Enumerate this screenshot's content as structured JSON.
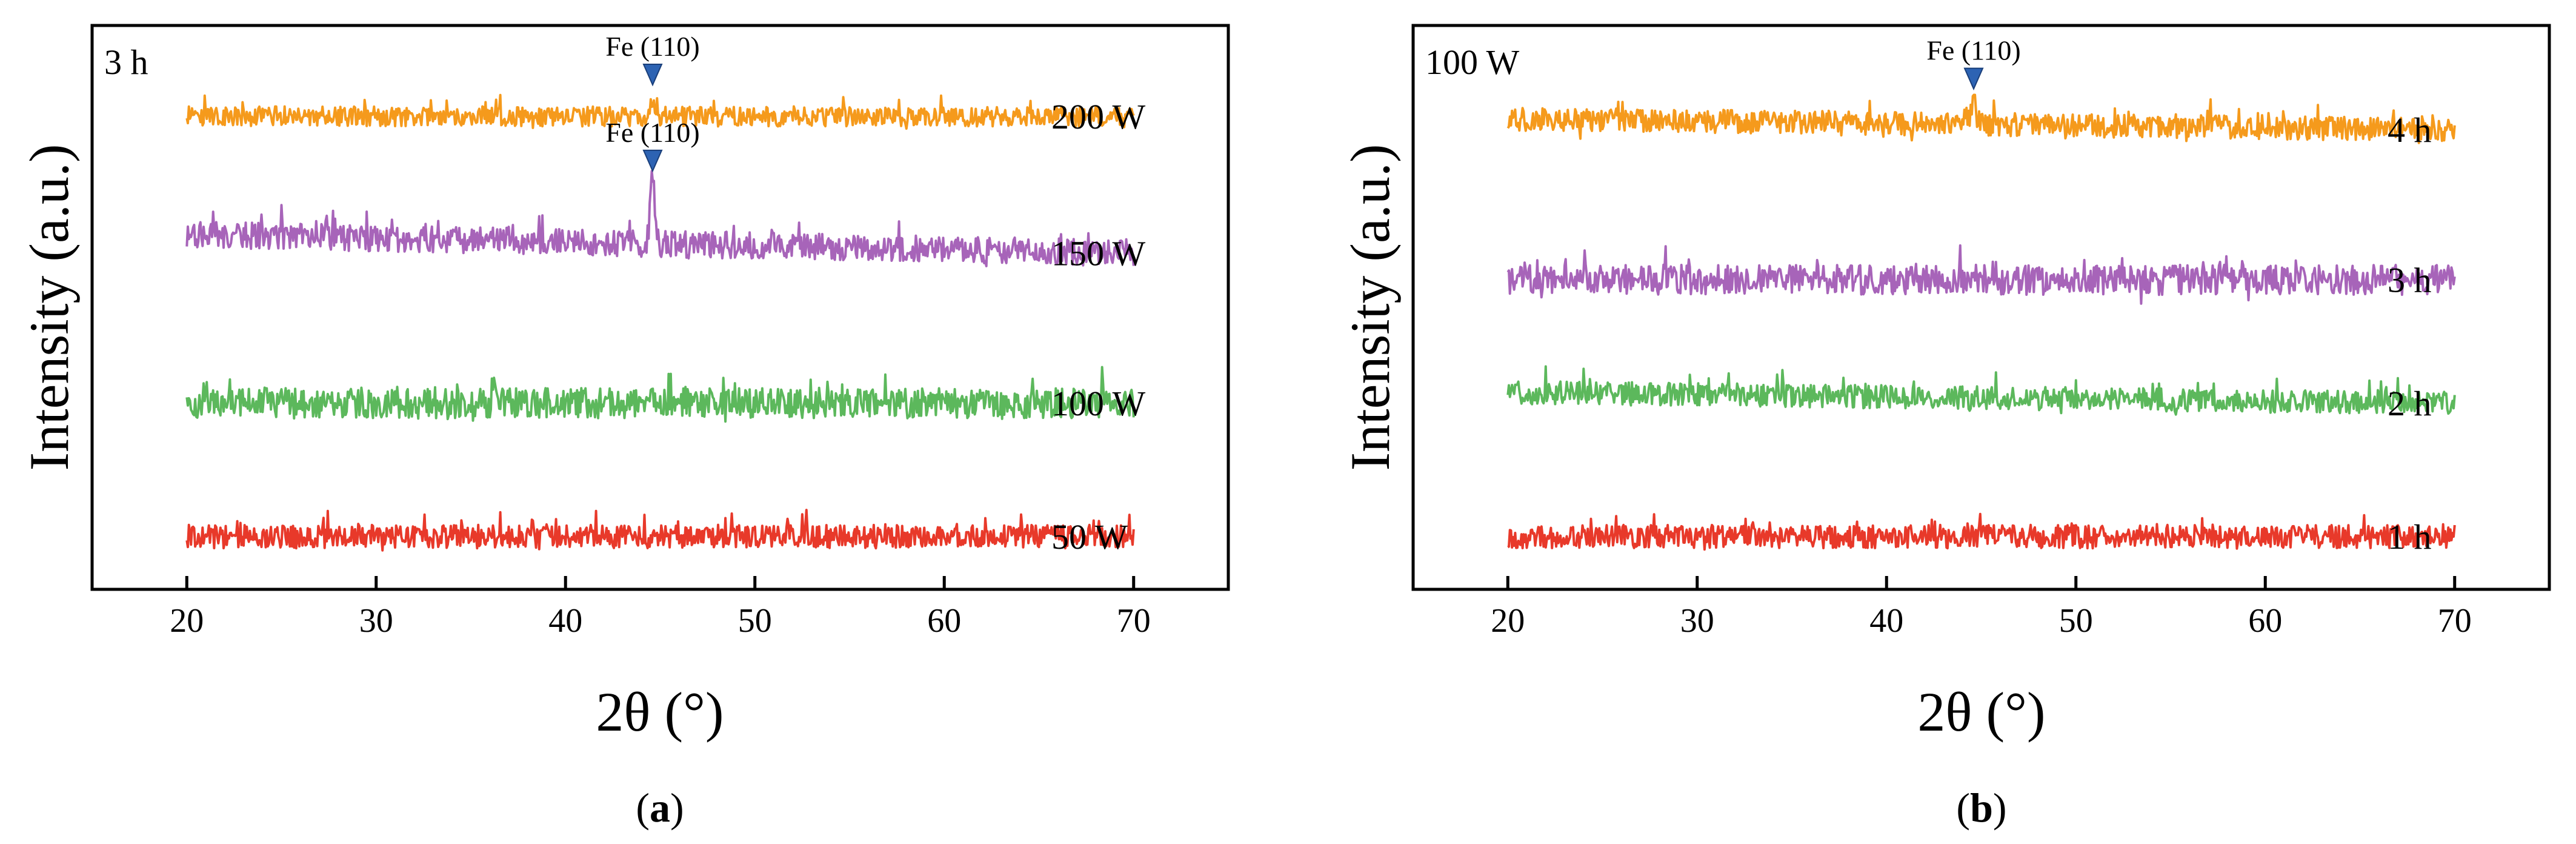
{
  "chart_data": [
    {
      "type": "line",
      "panel_label": "a",
      "corner_label": "3 h",
      "xlabel": "2θ (°)",
      "ylabel": "Intensity (a.u.)",
      "xlim": [
        15,
        75
      ],
      "x_range": [
        20,
        70
      ],
      "xticks": [
        20,
        30,
        40,
        50,
        60,
        70
      ],
      "yticks": [],
      "series": [
        {
          "name": "50 W",
          "offset": 1.0,
          "color": "#e8392a",
          "noise": 0.35,
          "peak": null
        },
        {
          "name": "100 W",
          "offset": 3.0,
          "color": "#5cb85c",
          "noise": 0.45,
          "peak": null
        },
        {
          "name": "150 W",
          "offset": 5.25,
          "color": "#a764b9",
          "noise": 0.4,
          "peak": {
            "x": 44.6,
            "height": 1.0
          },
          "baseline_slope": 0.35
        },
        {
          "name": "200 W",
          "offset": 7.3,
          "color": "#f59a1c",
          "noise": 0.3,
          "peak": {
            "x": 44.6,
            "height": 0.28
          }
        }
      ],
      "annotations": [
        {
          "text": "Fe (110)",
          "x": 44.6,
          "series": "150 W"
        },
        {
          "text": "Fe (110)",
          "x": 44.6,
          "series": "200 W"
        }
      ],
      "marker_color": "#2d63b3"
    },
    {
      "type": "line",
      "panel_label": "b",
      "corner_label": "100 W",
      "xlabel": "2θ (°)",
      "ylabel": "Intensity (a.u.)",
      "xlim": [
        15,
        75
      ],
      "x_range": [
        20,
        70
      ],
      "xticks": [
        20,
        30,
        40,
        50,
        60,
        70
      ],
      "yticks": [],
      "series": [
        {
          "name": "1 h",
          "offset": 1.0,
          "color": "#e8392a",
          "noise": 0.35,
          "peak": null
        },
        {
          "name": "2 h",
          "offset": 3.0,
          "color": "#5cb85c",
          "noise": 0.35,
          "peak": null,
          "baseline_slope": 0.2
        },
        {
          "name": "3 h",
          "offset": 4.85,
          "color": "#a764b9",
          "noise": 0.45,
          "peak": null
        },
        {
          "name": "4 h",
          "offset": 7.1,
          "color": "#f59a1c",
          "noise": 0.35,
          "peak": {
            "x": 44.6,
            "height": 0.4
          },
          "baseline_slope": 0.2
        }
      ],
      "annotations": [
        {
          "text": "Fe (110)",
          "x": 44.6,
          "series": "4 h"
        }
      ],
      "marker_color": "#2d63b3"
    }
  ]
}
